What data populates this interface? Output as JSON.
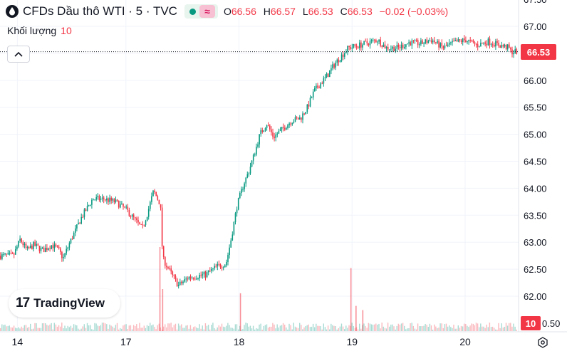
{
  "header": {
    "symbol_title": "CFDs Dầu thô WTI · 5 · TVC",
    "symbol_icon": "oil-drop-icon",
    "ohlc": {
      "open_label": "O",
      "open": "66.56",
      "high_label": "H",
      "high": "66.57",
      "low_label": "L",
      "low": "66.53",
      "close_label": "C",
      "close": "66.53",
      "change": "−0.02 (−0.03%)"
    }
  },
  "volume_legend": {
    "label": "Khối lượng",
    "value": "10"
  },
  "logo": {
    "mark": "17",
    "text": "TradingView"
  },
  "price_tag": "66.53",
  "volume_tag": "10",
  "colors": {
    "up": "#089981",
    "down": "#f23645",
    "last_price": "#f23645",
    "grid": "#f0f3fa"
  },
  "chart_data": {
    "type": "candlestick",
    "x_ticks": [
      {
        "t": 0.04,
        "label": "14"
      },
      {
        "t": 1,
        "label": "17"
      },
      {
        "t": 2,
        "label": "18"
      },
      {
        "t": 3,
        "label": "19"
      },
      {
        "t": 4,
        "label": "20"
      }
    ],
    "x_range": [
      -0.02,
      4.43
    ],
    "y_ticks": [
      "62.00",
      "62.50",
      "63.00",
      "63.50",
      "64.00",
      "64.50",
      "65.00",
      "65.50",
      "66.00",
      "66.50",
      "67.00",
      "67.50"
    ],
    "y_range": [
      61.5,
      67.55
    ],
    "last_price": 66.53,
    "volume_tick": "0.50",
    "price_path": [
      [
        0.0,
        62.75
      ],
      [
        0.06,
        63.05
      ],
      [
        0.12,
        62.85
      ],
      [
        0.18,
        62.95
      ],
      [
        0.26,
        62.85
      ],
      [
        0.34,
        62.95
      ],
      [
        0.4,
        62.85
      ],
      [
        0.44,
        62.7
      ],
      [
        0.5,
        63.0
      ],
      [
        0.6,
        63.45
      ],
      [
        0.7,
        63.8
      ],
      [
        0.8,
        63.8
      ],
      [
        0.9,
        63.75
      ],
      [
        1.0,
        63.6
      ],
      [
        1.08,
        63.4
      ],
      [
        1.14,
        63.25
      ],
      [
        1.18,
        63.5
      ],
      [
        1.24,
        63.95
      ],
      [
        1.3,
        63.7
      ],
      [
        1.32,
        62.7
      ],
      [
        1.4,
        62.4
      ],
      [
        1.46,
        62.2
      ],
      [
        1.55,
        62.35
      ],
      [
        1.7,
        62.4
      ],
      [
        1.8,
        62.55
      ],
      [
        1.88,
        62.6
      ],
      [
        1.92,
        63.0
      ],
      [
        1.98,
        63.7
      ],
      [
        2.04,
        64.1
      ],
      [
        2.08,
        64.3
      ],
      [
        2.14,
        64.7
      ],
      [
        2.18,
        65.0
      ],
      [
        2.24,
        65.2
      ],
      [
        2.3,
        64.95
      ],
      [
        2.38,
        65.1
      ],
      [
        2.46,
        65.25
      ],
      [
        2.54,
        65.3
      ],
      [
        2.6,
        65.5
      ],
      [
        2.66,
        65.8
      ],
      [
        2.72,
        65.95
      ],
      [
        2.78,
        66.1
      ],
      [
        2.84,
        66.3
      ],
      [
        2.88,
        66.4
      ],
      [
        2.96,
        66.6
      ],
      [
        3.06,
        66.65
      ],
      [
        3.14,
        66.7
      ],
      [
        3.22,
        66.75
      ],
      [
        3.3,
        66.6
      ],
      [
        3.4,
        66.6
      ],
      [
        3.5,
        66.7
      ],
      [
        3.6,
        66.68
      ],
      [
        3.7,
        66.75
      ],
      [
        3.8,
        66.6
      ],
      [
        3.9,
        66.7
      ],
      [
        4.0,
        66.75
      ],
      [
        4.1,
        66.65
      ],
      [
        4.2,
        66.72
      ],
      [
        4.3,
        66.65
      ],
      [
        4.38,
        66.6
      ],
      [
        4.4,
        66.53
      ]
    ],
    "volume_spikes": [
      {
        "t": 1.296,
        "v": 1.0
      },
      {
        "t": 2.985,
        "v": 0.75
      },
      {
        "t": 2.008,
        "v": 0.45
      },
      {
        "t": 1.32,
        "v": 0.5
      },
      {
        "t": 3.03,
        "v": 0.3
      },
      {
        "t": 3.09,
        "v": 0.25
      }
    ]
  }
}
